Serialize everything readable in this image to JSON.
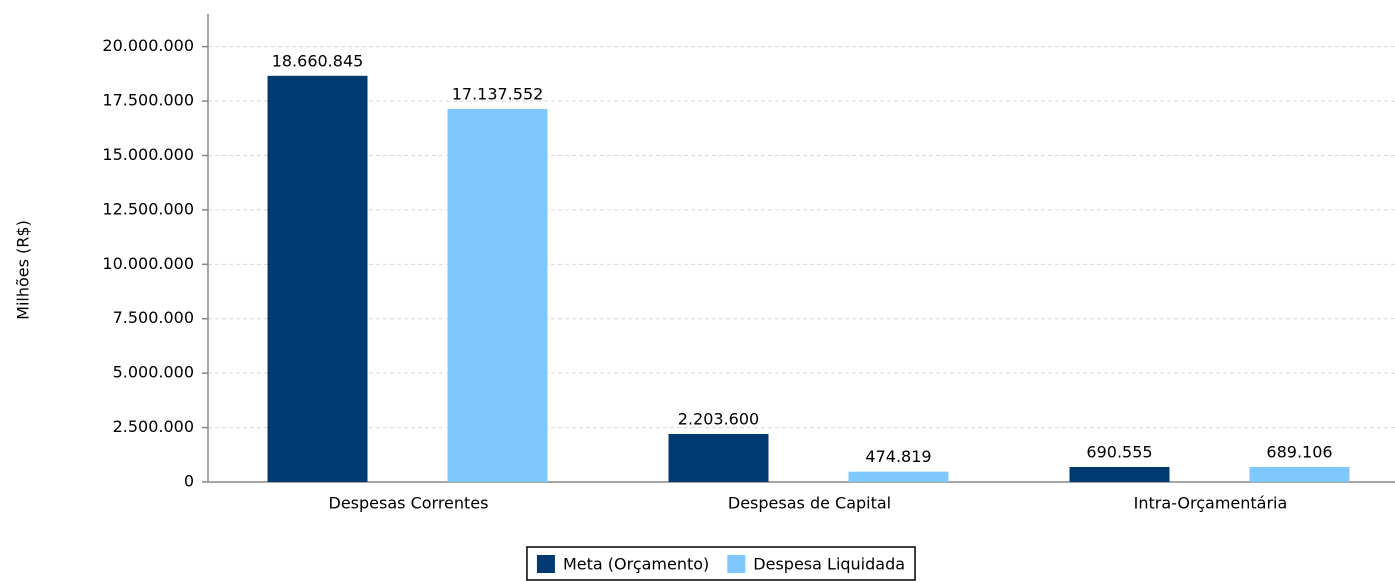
{
  "chart_data": {
    "type": "bar",
    "y_label": "Milhões (R$)",
    "categories": [
      "Despesas Correntes",
      "Despesas de Capital",
      "Intra-Orçamentária"
    ],
    "series": [
      {
        "name": "Meta (Orçamento)",
        "color": "#003a70",
        "values": [
          18660845,
          2203600,
          690555
        ],
        "value_labels": [
          "18.660.845",
          "2.203.600",
          "690.555"
        ]
      },
      {
        "name": "Despesa Liquidada",
        "color": "#7ec8ff",
        "values": [
          17137552,
          474819,
          689106
        ],
        "value_labels": [
          "17.137.552",
          "474.819",
          "689.106"
        ]
      }
    ],
    "ylim": [
      0,
      21500000
    ],
    "yticks": [
      0,
      {
        "value": 2500000,
        "label": "2.500.000"
      },
      {
        "value": 5000000,
        "label": "5.000.000"
      },
      {
        "value": 7500000,
        "label": "7.500.000"
      },
      {
        "value": 10000000,
        "label": "10.000.000"
      },
      {
        "value": 12500000,
        "label": "12.500.000"
      },
      {
        "value": 15000000,
        "label": "15.000.000"
      },
      {
        "value": 17500000,
        "label": "17.500.000"
      },
      {
        "value": 20000000,
        "label": "20.000.000"
      }
    ],
    "grid": true,
    "legend": "bottom"
  }
}
